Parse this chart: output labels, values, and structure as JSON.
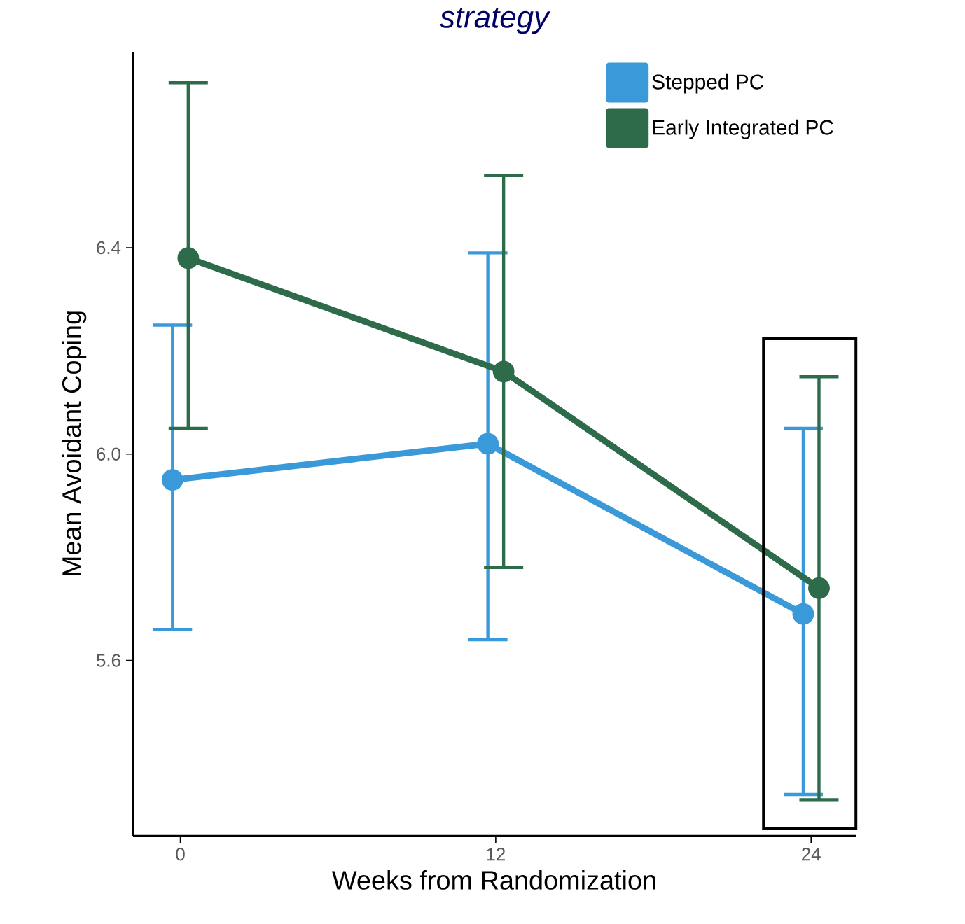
{
  "chart_data": {
    "type": "line",
    "title": "strategy",
    "xlabel": "Weeks from Randomization",
    "ylabel": "Mean Avoidant Coping",
    "xlim": [
      -1.8,
      25.7
    ],
    "xticks": [
      0,
      12,
      24
    ],
    "ylim": [
      5.26,
      6.78
    ],
    "yticks": [
      5.6,
      {
        "value": 6.0,
        "label": "6.0"
      },
      6.4
    ],
    "series": [
      {
        "name": "Stepped PC",
        "color": "#3a9ad9",
        "x": [
          -0.3,
          11.7,
          23.7
        ],
        "values": [
          5.95,
          6.02,
          5.69
        ],
        "errors": [
          [
            5.66,
            6.25
          ],
          [
            5.64,
            6.39
          ],
          [
            5.34,
            6.05
          ]
        ]
      },
      {
        "name": "Early Integrated PC",
        "color": "#2d6b4a",
        "x": [
          0.3,
          12.3,
          24.3
        ],
        "values": [
          6.38,
          6.16,
          5.74
        ],
        "errors": [
          [
            6.05,
            6.72
          ],
          [
            5.78,
            6.54
          ],
          [
            5.33,
            6.15
          ]
        ]
      }
    ],
    "marker": "circle",
    "legend": "top right",
    "grid": false
  }
}
